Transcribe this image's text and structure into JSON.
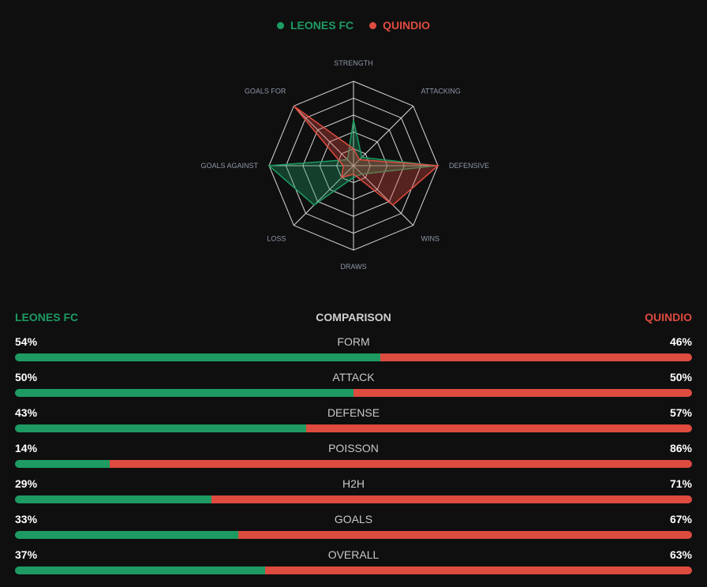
{
  "teams": {
    "home": {
      "name": "LEONES FC",
      "color": "#1e9b62"
    },
    "away": {
      "name": "QUINDIO",
      "color": "#de4b3f"
    }
  },
  "comparison_title": "COMPARISON",
  "chart_data": [
    {
      "type": "radar",
      "axes": [
        "STRENGTH",
        "ATTACKING",
        "DEFENSIVE",
        "WINS",
        "DRAWS",
        "LOSS",
        "GOALS AGAINST",
        "GOALS FOR"
      ],
      "scale": [
        0,
        100
      ],
      "rings": 5,
      "series": [
        {
          "name": "LEONES FC",
          "values": [
            54,
            14,
            98,
            14,
            14,
            66,
            100,
            10
          ],
          "color": "#1e9b62"
        },
        {
          "name": "QUINDIO",
          "values": [
            20,
            10,
            100,
            66,
            10,
            20,
            12,
            100
          ],
          "color": "#de4b3f"
        }
      ]
    },
    {
      "type": "bar",
      "stacked": true,
      "categories": [
        "FORM",
        "ATTACK",
        "DEFENSE",
        "POISSON",
        "H2H",
        "GOALS",
        "OVERALL"
      ],
      "series": [
        {
          "name": "LEONES FC",
          "values": [
            54,
            50,
            43,
            14,
            29,
            33,
            37
          ],
          "labels": [
            "54%",
            "50%",
            "43%",
            "14%",
            "29%",
            "33%",
            "37%"
          ]
        },
        {
          "name": "QUINDIO",
          "values": [
            46,
            50,
            57,
            86,
            71,
            67,
            63
          ],
          "labels": [
            "46%",
            "50%",
            "57%",
            "86%",
            "71%",
            "67%",
            "63%"
          ]
        }
      ]
    }
  ]
}
